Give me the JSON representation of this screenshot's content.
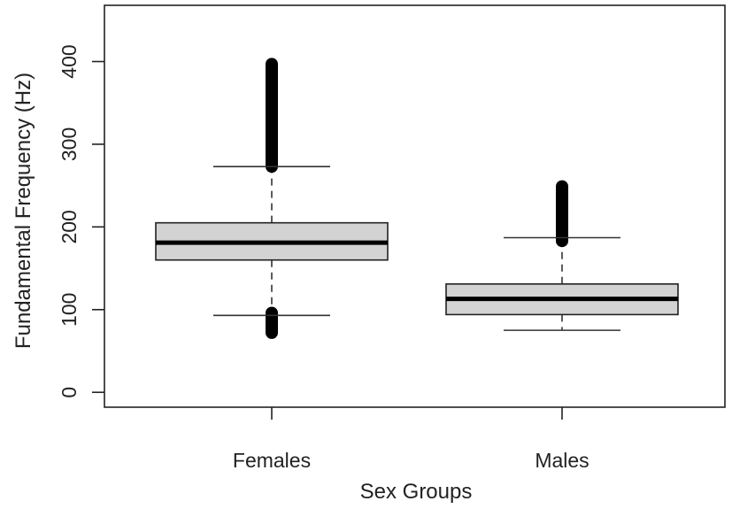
{
  "chart_data": {
    "type": "boxplot",
    "xlabel": "Sex Groups",
    "ylabel": "Fundamental Frequency (Hz)",
    "ylim": [
      -18,
      468
    ],
    "yticks": [
      0,
      100,
      200,
      300,
      400
    ],
    "grid": false,
    "legend": "none",
    "box_color": "#d3d3d3",
    "groups": [
      {
        "label": "Females",
        "whisker_low": 93,
        "q1": 160,
        "median": 181,
        "q3": 205,
        "whisker_high": 273,
        "outliers_high": [
          273,
          397
        ],
        "outliers_low": [
          72,
          96
        ]
      },
      {
        "label": "Males",
        "whisker_low": 75,
        "q1": 94,
        "median": 113,
        "q3": 131,
        "whisker_high": 187,
        "outliers_high": [
          183,
          249
        ],
        "outliers_low": null
      }
    ]
  }
}
